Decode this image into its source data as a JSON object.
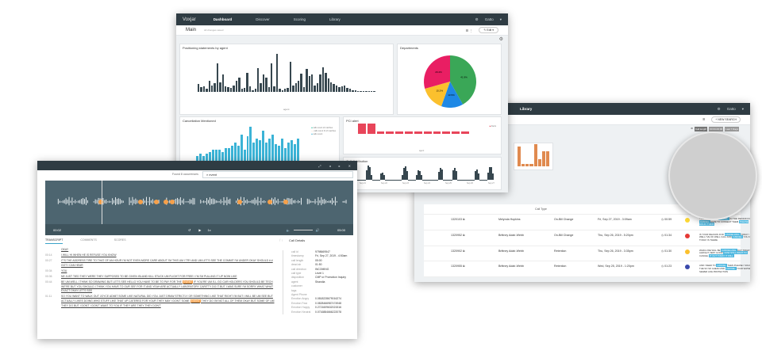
{
  "dashboard": {
    "app_name": "Voxjar",
    "nav": [
      "Dashboard",
      "Discover",
      "Scoring",
      "Library"
    ],
    "user": "Gatto",
    "page_title": "Main",
    "page_subtitle": "All changes saved",
    "edit_label": "Edit",
    "panels": {
      "positioning": {
        "title": "Positioning statements by agent",
        "xlabel": "agent",
        "values": [
          8,
          5,
          6,
          3,
          12,
          7,
          9,
          30,
          10,
          18,
          6,
          5,
          4,
          7,
          12,
          15,
          3,
          4,
          20,
          6,
          2,
          3,
          25,
          9,
          18,
          15,
          5,
          30,
          6,
          40,
          3,
          2,
          3,
          4,
          32,
          7,
          9,
          12,
          19,
          5,
          24,
          17,
          18,
          7,
          9,
          18,
          26,
          20,
          14,
          10,
          8,
          7,
          5,
          6,
          7,
          4,
          3,
          2,
          2,
          1,
          1,
          1,
          1,
          1,
          1,
          1
        ]
      },
      "departments": {
        "title": "Departments",
        "slices": [
          {
            "label": "41.9%",
            "value": 41.9,
            "color": "#3aa757"
          },
          {
            "label": "13.5%",
            "value": 13.5,
            "color": "#1e88e5"
          },
          {
            "label": "15.2%",
            "value": 15.2,
            "color": "#fbc02d"
          },
          {
            "label": "29.4%",
            "value": 29.4,
            "color": "#e91e63"
          }
        ]
      },
      "cancellation": {
        "title": "Cancellation Mentioned",
        "legend": [
          "calls count of matches",
          "calls count % of matches",
          "calls count"
        ],
        "values": [
          3,
          4,
          3,
          4,
          5,
          6,
          6,
          6,
          5,
          7,
          7,
          8,
          10,
          8,
          14,
          6,
          13,
          18,
          10,
          12,
          11,
          16,
          10,
          12,
          14,
          9,
          8,
          12,
          7,
          10,
          11,
          9,
          12
        ]
      },
      "pci": {
        "title": "PCI alert",
        "legend": "Alerts",
        "xlabel": "agent",
        "values": [
          4,
          4,
          1,
          1,
          1,
          1,
          1,
          1,
          1,
          1,
          1,
          1
        ]
      },
      "distribution": {
        "title": "Call distribution",
        "ticks": [
          "Sep 21",
          "Sep 22",
          "Sep 23",
          "Sep 24",
          "Sep 25",
          "Sep 26",
          "Sep 27"
        ]
      }
    }
  },
  "library": {
    "nav_item": "Library",
    "user": "Gatto",
    "new_search": "NEW SEARCH",
    "filters": [
      "Call length",
      "00:00-00:00",
      "Last 7 Days"
    ],
    "columns": [
      "",
      "",
      "Call Type",
      "Date",
      "Length"
    ],
    "rows": [
      {
        "id": "1320103",
        "agent": "Melynda Hopkins",
        "type": "On-Bill Change",
        "date": "Fri, Sep 27, 2019 - 3:09am",
        "length": "00:59",
        "sentiment": "#fdd835",
        "snippet": [
          "YOU OUT TODAY",
          "CANCEL",
          "UH THE REASON FOR",
          "CANCEL",
          "HAVE TO CONNECT THEM",
          "PLEASE HOLD I THINK"
        ]
      },
      {
        "id": "1320952",
        "agent": "Brittney Adair-Webb",
        "type": "On-Bill Change",
        "date": "Thu, Sep 26, 2019 - 5:20pm",
        "length": "01:34",
        "sentiment": "#e53935",
        "snippet": [
          "IS YOUR REASON FOR",
          "CANCELLING",
          "TODAY I WELL I'VE OK WELL CALL AND",
          "CANCEL",
          "YOU OUT TODAY IS THERE"
        ]
      },
      {
        "id": "1320902",
        "agent": "Brittney Adair-Webb",
        "type": "Retention",
        "date": "Thu, Sep 26, 2019 - 3:35pm",
        "length": "01:30",
        "sentiment": "#fbc02d",
        "snippet": [
          "WHICH WE WILL BE",
          "CANCELLING",
          "OUT TODAY ALRIGHT VERY GOOD",
          "NOW STILL WANT TO",
          "CANCEL",
          "IT OUT TODAY IT WILL"
        ]
      },
      {
        "id": "1320955",
        "agent": "Brittney Adair-Webb",
        "type": "Retention",
        "date": "Wed, Sep 25, 2019 - 1:20pm",
        "length": "01:23",
        "sentiment": "#3949ab",
        "snippet": [
          "AND I NEED TO",
          "CANCEL",
          "THEN PLEASE I SOLD THE SO SO AHEAD AND",
          "CANCEL",
          "YOUR WATER SEWER LIFE PROTECTION"
        ]
      }
    ]
  },
  "player": {
    "found_label": "Found 8 occurrences",
    "search_value": "event",
    "time_start": "00:02",
    "time_end": "05:00",
    "speed": "1x",
    "tabs": [
      "TRANSCRIPT",
      "COMMENTS",
      "SCORES"
    ],
    "transcript": [
      {
        "time": "",
        "text": "OKAY"
      },
      {
        "time": "00:14",
        "text": "I WILL HI WHEN HE IS REFUSE YOU KNOW"
      },
      {
        "time": "00:27",
        "text": "IT'S THE ADDRESS TIRE TO THAT OF AN HOUR I'M NOT EVEN MORE CARE ABOUT I'M THIS UM I TRY AND UM LET'S SEE THE COMMIT I'M UNDER OKAY SHOULD # # GOT I CAN HEAR"
      },
      {
        "time": "00:34",
        "text": "YOU"
      },
      {
        "time": "00:36",
        "text": "NE JUST TIED THEY WERE THEY SUPPOSED TO BE GIVEN ISLAND KILL STUCK UM FLIGHT FOR FREE I I'M I'M PULLING IT UP NOW LIKE"
      },
      {
        "time": "00:44",
        "text": "BE UM WELL I THINK SO DRAWING BUT LET'S SEE HELLO YOU HAVE TO BE TO PAY FOR THE",
        "hl": "EVENT",
        "after": "IF YOU'RE UM I'LL GO CAR HOLDERS YOU SHOULD BE TECH WE'RE BUT YOU SHOULD I THINK YOU HAVE TO OUR SEF FOR IT AND YEAH ARE ACTUALLY LABORATORY CARITTY DO IT BUT I WAS SURE I'M SORRY WHAT WHAT EXACT OKAY LET'S SEE"
      },
      {
        "time": "01:11",
        "text": "SO YOU WANT TO WALK OUT JOYCE ADMIT SOME LIKE NATURAL DID YOU JUST DRAW STRICTLY OR SOMETHING LIKE THAT RIGHT I'M BUT I WILL BE UM SEE BUT ACTUALLY LIKES DOING WHO STUFF LIKE THAT UP CATERED FOR YOUR THEY MAY I DON'T SOME",
        "hl": "EVENT",
        "after": "THEY DO I'M NOT ALL OF THEM OKAY BUT SOME OF UM THEY DO BUT I DON'T I DON'T WANT TO YOU IF THEY ARE THEY THEY DON'T"
      }
    ],
    "details_title": "Call Details",
    "details": [
      [
        "call id",
        "9798669547"
      ],
      [
        "timestamp",
        "Fri, Sep 27, 2019 - 4:50am"
      ],
      [
        "call length",
        "05:00"
      ],
      [
        "dead air",
        "01:50"
      ],
      [
        "call direction",
        "INCOMING"
      ],
      [
        "call type",
        "Level 1"
      ],
      [
        "disposition",
        "CMP or Promotion Inquiry"
      ],
      [
        "agent",
        "Shandia"
      ],
      [
        "customer",
        ""
      ],
      [
        "tags",
        ""
      ],
      [
        "Agent Phone",
        ""
      ],
      [
        "Emotion Angry",
        "0.0818228679016274"
      ],
      [
        "Emotion Fear",
        "0.0828466987474948"
      ],
      [
        "Emotion Happy",
        "0.2721609632021516"
      ],
      [
        "Emotion Neutral",
        "0.0716884666222078"
      ]
    ]
  },
  "colors": {
    "header": "#2f3c43",
    "waveform": "#4d6570",
    "bar_dark": "#37474f",
    "cancel_teal": "#2ec4a6",
    "cancel_blue": "#3bb3d6",
    "pci_red": "#e8455a",
    "library_bar": "#e08a4f",
    "highlight": "#f5a04a",
    "keyword": "#4fb8e0"
  }
}
